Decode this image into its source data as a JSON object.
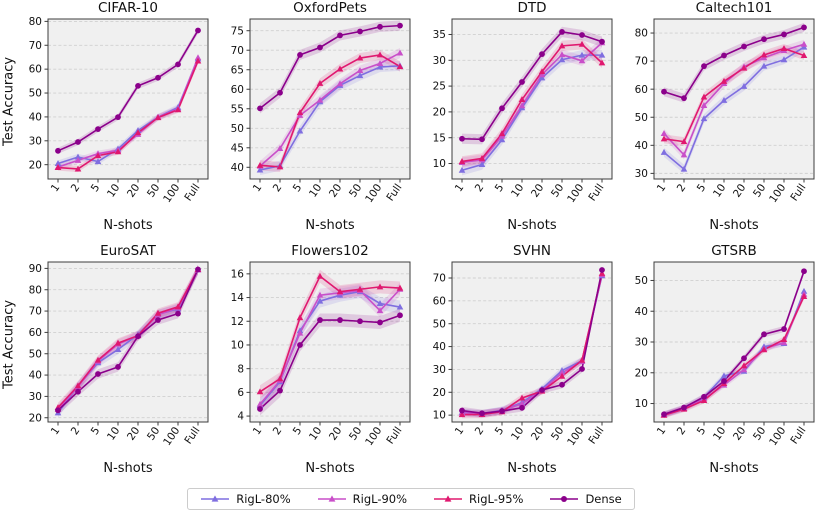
{
  "axes": {
    "xlabel": "N-shots",
    "ylabel": "Test Accuracy"
  },
  "legend": {
    "items": [
      {
        "label": "RigL-80%",
        "color": "#7F6EE0",
        "marker": "triangle"
      },
      {
        "label": "RigL-90%",
        "color": "#C94FC9",
        "marker": "triangle"
      },
      {
        "label": "RigL-95%",
        "color": "#E0186F",
        "marker": "triangle"
      },
      {
        "label": "Dense",
        "color": "#8B008B",
        "marker": "circle"
      }
    ]
  },
  "chart_data": [
    {
      "type": "line",
      "title": "CIFAR-10",
      "categories": [
        "1",
        "2",
        "5",
        "10",
        "20",
        "50",
        "100",
        "Full"
      ],
      "ylim": [
        14,
        81
      ],
      "yticks": [
        20,
        30,
        40,
        50,
        60,
        70,
        80
      ],
      "band": 1.3,
      "series": [
        {
          "name": "RigL-80%",
          "values": [
            20.5,
            23.2,
            21.3,
            26.6,
            34.3,
            39.9,
            44.0,
            64.3
          ]
        },
        {
          "name": "RigL-90%",
          "values": [
            19.0,
            21.8,
            24.6,
            26.0,
            32.7,
            39.9,
            43.4,
            64.8
          ]
        },
        {
          "name": "RigL-95%",
          "values": [
            18.8,
            18.2,
            23.8,
            25.4,
            33.4,
            39.7,
            43.0,
            63.4
          ]
        },
        {
          "name": "Dense",
          "values": [
            25.8,
            29.5,
            34.9,
            39.9,
            53.0,
            56.4,
            62.0,
            76.2
          ]
        }
      ]
    },
    {
      "type": "line",
      "title": "OxfordPets",
      "categories": [
        "1",
        "2",
        "5",
        "10",
        "20",
        "50",
        "100",
        "Full"
      ],
      "ylim": [
        37,
        78
      ],
      "yticks": [
        40,
        45,
        50,
        55,
        60,
        65,
        70,
        75
      ],
      "band": 1.3,
      "series": [
        {
          "name": "RigL-80%",
          "values": [
            39.3,
            40.4,
            49.3,
            56.8,
            61.0,
            63.5,
            65.7,
            66.0
          ]
        },
        {
          "name": "RigL-90%",
          "values": [
            40.3,
            44.8,
            53.3,
            57.2,
            61.4,
            64.8,
            66.6,
            69.3
          ]
        },
        {
          "name": "RigL-95%",
          "values": [
            40.5,
            40.1,
            54.0,
            61.5,
            65.2,
            68.0,
            68.8,
            65.8
          ]
        },
        {
          "name": "Dense",
          "values": [
            55.1,
            59.1,
            68.8,
            70.7,
            73.8,
            74.8,
            76.0,
            76.3
          ]
        }
      ]
    },
    {
      "type": "line",
      "title": "DTD",
      "categories": [
        "1",
        "2",
        "5",
        "10",
        "20",
        "50",
        "100",
        "Full"
      ],
      "ylim": [
        7,
        38
      ],
      "yticks": [
        10,
        15,
        20,
        25,
        30,
        35
      ],
      "band": 1.0,
      "series": [
        {
          "name": "RigL-80%",
          "values": [
            8.7,
            9.8,
            14.6,
            20.8,
            26.6,
            30.1,
            31.0,
            31.0
          ]
        },
        {
          "name": "RigL-90%",
          "values": [
            10.2,
            10.7,
            15.3,
            21.2,
            27.2,
            31.1,
            29.9,
            33.4
          ]
        },
        {
          "name": "RigL-95%",
          "values": [
            10.4,
            11.0,
            15.8,
            22.4,
            27.8,
            32.8,
            33.1,
            29.5
          ]
        },
        {
          "name": "Dense",
          "values": [
            14.8,
            14.7,
            20.7,
            25.8,
            31.2,
            35.5,
            34.9,
            33.6
          ]
        }
      ]
    },
    {
      "type": "line",
      "title": "Caltech101",
      "categories": [
        "1",
        "2",
        "5",
        "10",
        "20",
        "50",
        "100",
        "Full"
      ],
      "ylim": [
        28,
        85
      ],
      "yticks": [
        30,
        40,
        50,
        60,
        70,
        80
      ],
      "band": 1.6,
      "series": [
        {
          "name": "RigL-80%",
          "values": [
            37.5,
            31.5,
            49.5,
            56.0,
            61.0,
            68.2,
            70.5,
            75.0
          ]
        },
        {
          "name": "RigL-90%",
          "values": [
            44.2,
            36.6,
            54.2,
            62.0,
            68.0,
            71.2,
            73.8,
            76.0
          ]
        },
        {
          "name": "RigL-95%",
          "values": [
            42.3,
            41.3,
            57.2,
            62.8,
            67.5,
            72.2,
            74.5,
            72.0
          ]
        },
        {
          "name": "Dense",
          "values": [
            59.1,
            56.8,
            68.2,
            72.0,
            75.2,
            77.8,
            79.5,
            82.0
          ]
        }
      ]
    },
    {
      "type": "line",
      "title": "EuroSAT",
      "categories": [
        "1",
        "2",
        "5",
        "10",
        "20",
        "50",
        "100",
        "Full"
      ],
      "ylim": [
        18,
        93
      ],
      "yticks": [
        20,
        30,
        40,
        50,
        60,
        70,
        80,
        90
      ],
      "band": 2.2,
      "series": [
        {
          "name": "RigL-80%",
          "values": [
            22.3,
            34.8,
            45.8,
            52.0,
            59.0,
            68.5,
            71.0,
            89.3
          ]
        },
        {
          "name": "RigL-90%",
          "values": [
            24.0,
            34.5,
            46.5,
            54.5,
            58.5,
            68.3,
            71.5,
            89.3
          ]
        },
        {
          "name": "RigL-95%",
          "values": [
            24.8,
            35.0,
            47.0,
            55.0,
            58.5,
            69.0,
            72.0,
            89.5
          ]
        },
        {
          "name": "Dense",
          "values": [
            23.5,
            32.2,
            40.5,
            43.8,
            58.2,
            65.8,
            68.8,
            89.5
          ]
        }
      ]
    },
    {
      "type": "line",
      "title": "Flowers102",
      "categories": [
        "1",
        "2",
        "5",
        "10",
        "20",
        "50",
        "100",
        "Full"
      ],
      "ylim": [
        3.5,
        17
      ],
      "yticks": [
        4,
        6,
        8,
        10,
        12,
        14,
        16
      ],
      "band": 0.55,
      "series": [
        {
          "name": "RigL-80%",
          "values": [
            4.9,
            6.9,
            11.2,
            13.7,
            14.2,
            14.5,
            13.5,
            13.2
          ]
        },
        {
          "name": "RigL-90%",
          "values": [
            5.0,
            7.0,
            11.0,
            14.2,
            14.4,
            14.6,
            12.9,
            14.7
          ]
        },
        {
          "name": "RigL-95%",
          "values": [
            6.05,
            7.15,
            12.3,
            15.8,
            14.5,
            14.7,
            14.9,
            14.8
          ]
        },
        {
          "name": "Dense",
          "values": [
            4.6,
            6.15,
            10.0,
            12.1,
            12.1,
            12.0,
            11.9,
            12.5
          ]
        }
      ]
    },
    {
      "type": "line",
      "title": "SVHN",
      "categories": [
        "1",
        "2",
        "5",
        "10",
        "20",
        "50",
        "100",
        "Full"
      ],
      "ylim": [
        7,
        77
      ],
      "yticks": [
        10,
        20,
        30,
        40,
        50,
        60,
        70
      ],
      "band": 1.6,
      "series": [
        {
          "name": "RigL-80%",
          "values": [
            11.2,
            10.6,
            12.2,
            15.5,
            21.5,
            29.5,
            33.8,
            71.0
          ]
        },
        {
          "name": "RigL-90%",
          "values": [
            11.0,
            10.5,
            12.0,
            15.0,
            20.8,
            28.5,
            33.5,
            71.5
          ]
        },
        {
          "name": "RigL-95%",
          "values": [
            10.2,
            10.3,
            11.5,
            17.5,
            20.5,
            27.0,
            34.0,
            72.0
          ]
        },
        {
          "name": "Dense",
          "values": [
            12.0,
            10.8,
            11.8,
            13.2,
            21.0,
            23.3,
            30.2,
            73.5
          ]
        }
      ]
    },
    {
      "type": "line",
      "title": "GTSRB",
      "categories": [
        "1",
        "2",
        "5",
        "10",
        "20",
        "50",
        "100",
        "Full"
      ],
      "ylim": [
        4,
        56
      ],
      "yticks": [
        10,
        20,
        30,
        40,
        50
      ],
      "band": 1.0,
      "series": [
        {
          "name": "RigL-80%",
          "values": [
            6.3,
            8.5,
            12.0,
            19.0,
            20.5,
            28.5,
            29.5,
            46.5
          ]
        },
        {
          "name": "RigL-90%",
          "values": [
            6.4,
            8.4,
            11.5,
            16.0,
            21.0,
            27.8,
            29.8,
            45.5
          ]
        },
        {
          "name": "RigL-95%",
          "values": [
            6.2,
            8.2,
            11.0,
            16.5,
            22.3,
            27.5,
            30.8,
            44.8
          ]
        },
        {
          "name": "Dense",
          "values": [
            6.5,
            8.7,
            12.2,
            17.3,
            24.7,
            32.5,
            34.2,
            53.0
          ]
        }
      ]
    }
  ]
}
